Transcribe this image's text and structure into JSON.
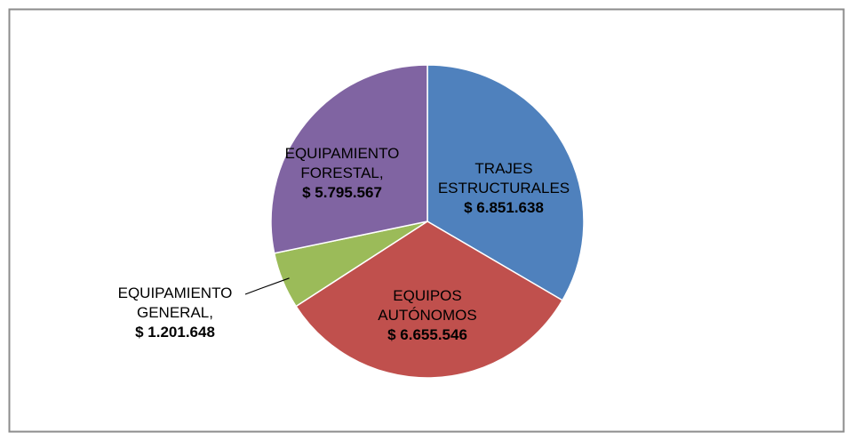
{
  "chart_data": {
    "type": "pie",
    "categories": [
      "TRAJES ESTRUCTURALES",
      "EQUIPOS AUTÓNOMOS",
      "EQUIPAMIENTO GENERAL,",
      "EQUIPAMIENTO FORESTAL,"
    ],
    "values": [
      6851638,
      6655546,
      1201648,
      5795567
    ],
    "value_labels": [
      "$ 6.851.638",
      "$ 6.655.546",
      "$ 1.201.648",
      "$ 5.795.567"
    ],
    "colors": [
      "#4f81bd",
      "#c0504d",
      "#9bbb59",
      "#8064a2"
    ]
  }
}
